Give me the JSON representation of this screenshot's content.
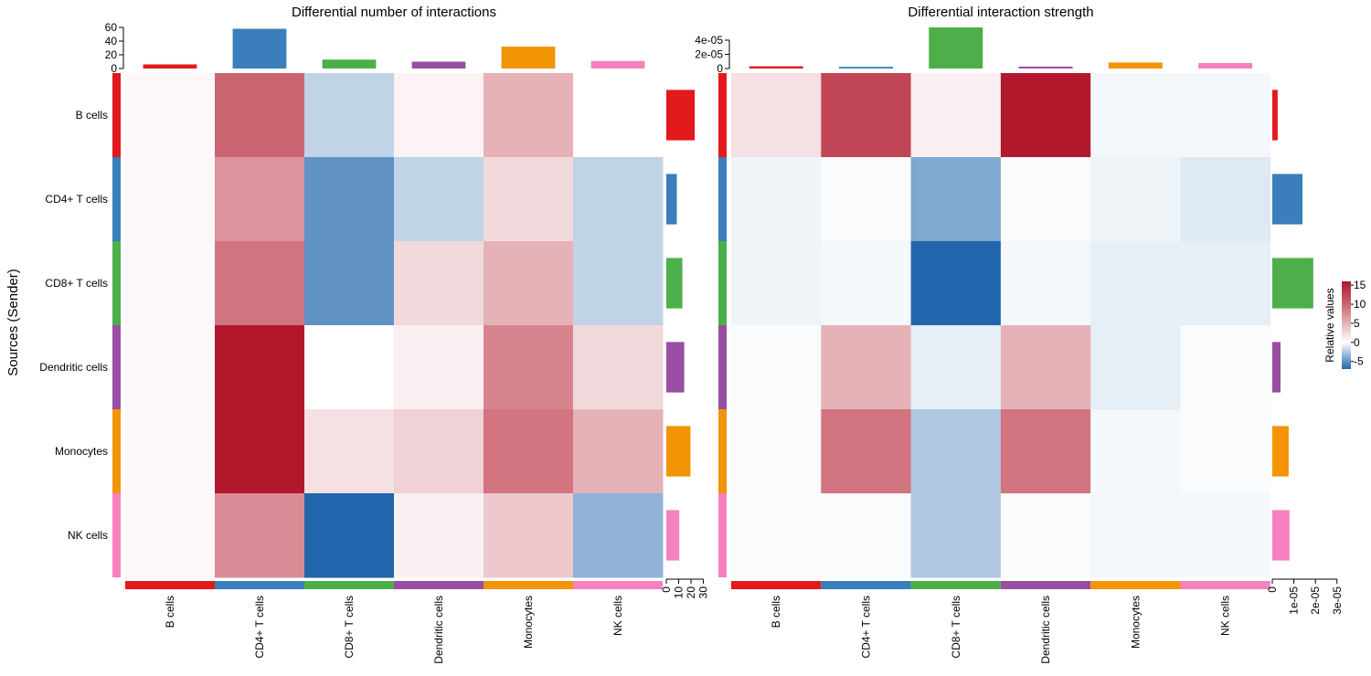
{
  "ylabel": "Sources (Sender)",
  "rows": [
    "B cells",
    "CD4+ T cells",
    "CD8+ T cells",
    "Dendritic cells",
    "Monocytes",
    "NK cells"
  ],
  "cols": [
    "B cells",
    "CD4+ T cells",
    "CD8+ T cells",
    "Dendritic cells",
    "Monocytes",
    "NK cells"
  ],
  "group_colors": [
    "#e31a1c",
    "#3a7fbb",
    "#4daf4a",
    "#984ea3",
    "#f29403",
    "#f781bf"
  ],
  "legend": {
    "title": "Relative values",
    "ticks": [
      "15",
      "10",
      "5",
      "0",
      "-5"
    ],
    "tick_values": [
      15,
      10,
      5,
      0,
      -5
    ],
    "range": [
      -7,
      16
    ],
    "colors": {
      "low": "#2166ac",
      "mid": "#ffffff",
      "high": "#b2182b"
    }
  },
  "chart_data": [
    {
      "type": "heatmap",
      "title": "Differential number of interactions",
      "rows": [
        "B cells",
        "CD4+ T cells",
        "CD8+ T cells",
        "Dendritic cells",
        "Monocytes",
        "NK cells"
      ],
      "cols": [
        "B cells",
        "CD4+ T cells",
        "CD8+ T cells",
        "Dendritic cells",
        "Monocytes",
        "NK cells"
      ],
      "values": [
        [
          0.5,
          10,
          -2,
          0.8,
          5,
          null
        ],
        [
          0.5,
          7,
          -5,
          -2,
          2.5,
          -2
        ],
        [
          0.5,
          9,
          -5,
          2.5,
          5,
          -2
        ],
        [
          0.5,
          15,
          null,
          1,
          8,
          2.5
        ],
        [
          0.5,
          15,
          2,
          3,
          9,
          5
        ],
        [
          0.5,
          7.5,
          -7,
          1,
          3.5,
          -3.5
        ]
      ],
      "top_bar": {
        "values": [
          6,
          58,
          13,
          10,
          32,
          11
        ],
        "ticks": [
          "60",
          "40",
          "20",
          "0"
        ],
        "tick_values": [
          60,
          40,
          20,
          0
        ],
        "max": 60
      },
      "right_bar": {
        "values": [
          23,
          8.5,
          13,
          14.5,
          19.5,
          10.5
        ],
        "ticks": [
          "0",
          "10",
          "20",
          "30"
        ],
        "tick_values": [
          0,
          10,
          20,
          30
        ],
        "max": 34
      }
    },
    {
      "type": "heatmap",
      "title": "Differential interaction strength",
      "rows": [
        "B cells",
        "CD4+ T cells",
        "CD8+ T cells",
        "Dendritic cells",
        "Monocytes",
        "NK cells"
      ],
      "cols": [
        "B cells",
        "CD4+ T cells",
        "CD8+ T cells",
        "Dendritic cells",
        "Monocytes",
        "NK cells"
      ],
      "values": [
        [
          2,
          12,
          1,
          15,
          -0.3,
          -0.3
        ],
        [
          -0.5,
          -0.2,
          -4,
          -0.2,
          -0.5,
          -1
        ],
        [
          -0.5,
          -0.3,
          -7,
          -0.3,
          -0.8,
          -0.8
        ],
        [
          -0.2,
          5,
          -0.8,
          5,
          -0.8,
          -0.2
        ],
        [
          -0.2,
          9,
          -2.5,
          9,
          -0.3,
          -0.2
        ],
        [
          -0.2,
          -0.2,
          -2.5,
          -0.2,
          -0.3,
          -0.3
        ]
      ],
      "top_bar": {
        "values": [
          3.1e-06,
          2.4e-06,
          5.8e-05,
          2.7e-06,
          8.5e-06,
          7.8e-06
        ],
        "ticks": [
          "4e-05",
          "2e-05",
          "0"
        ],
        "tick_values": [
          4e-05,
          2e-05,
          0
        ],
        "max": 5.8e-05
      },
      "right_bar": {
        "values": [
          2.5e-06,
          1.4e-05,
          1.9e-05,
          3.8e-06,
          7.6e-06,
          8e-06
        ],
        "ticks": [
          "0",
          "1e-05",
          "2e-05",
          "3e-05"
        ],
        "tick_values": [
          0,
          1e-05,
          2e-05,
          3e-05
        ],
        "max": 1.95e-05
      }
    }
  ]
}
